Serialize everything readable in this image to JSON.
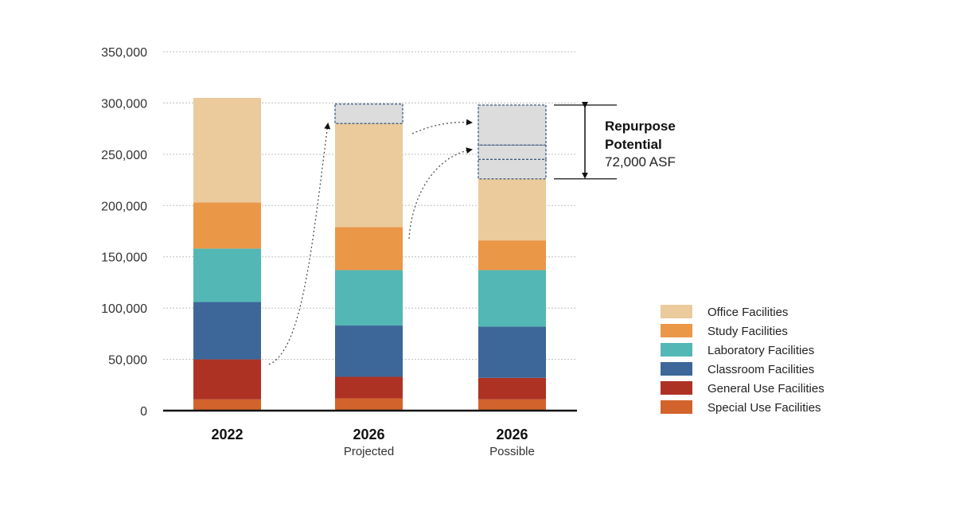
{
  "chart_data": {
    "type": "bar",
    "stacked": true,
    "categories": [
      "2022",
      "2026",
      "2026"
    ],
    "category_sublabels": [
      "",
      "Projected",
      "Possible"
    ],
    "series": [
      {
        "name": "Special Use Facilities",
        "color": "#d2632c",
        "values": [
          11000,
          12000,
          11000
        ]
      },
      {
        "name": "General Use Facilities",
        "color": "#ad3224",
        "values": [
          39000,
          21000,
          21000
        ]
      },
      {
        "name": "Classroom Facilities",
        "color": "#3c6798",
        "values": [
          56000,
          50000,
          50000
        ]
      },
      {
        "name": "Laboratory Facilities",
        "color": "#52b7b5",
        "values": [
          52000,
          54000,
          55000
        ]
      },
      {
        "name": "Study Facilities",
        "color": "#ea9748",
        "values": [
          45000,
          42000,
          29000
        ]
      },
      {
        "name": "Office Facilities",
        "color": "#ebca9b",
        "values": [
          102000,
          101000,
          60000
        ]
      }
    ],
    "repurpose_segments": [
      {
        "category_index": 1,
        "values": [
          19000
        ]
      },
      {
        "category_index": 2,
        "values": [
          19000,
          14000,
          39000
        ]
      }
    ],
    "repurpose_fill": "#dcdcdc",
    "repurpose_border": "#3d5a80",
    "yticks": [
      "0",
      "50,000",
      "100,000",
      "150,000",
      "200,000",
      "250,000",
      "300,000",
      "350,000"
    ],
    "ytick_values": [
      0,
      50000,
      100000,
      150000,
      200000,
      250000,
      300000,
      350000
    ],
    "ylim": [
      0,
      350000
    ],
    "grid": true,
    "legend_position": "right",
    "legend_order": [
      "Office Facilities",
      "Study Facilities",
      "Laboratory Facilities",
      "Classroom Facilities",
      "General Use Facilities",
      "Special Use Facilities"
    ],
    "annotation": {
      "line1": "Repurpose",
      "line2": "Potential",
      "line3": "72,000 ASF"
    }
  }
}
